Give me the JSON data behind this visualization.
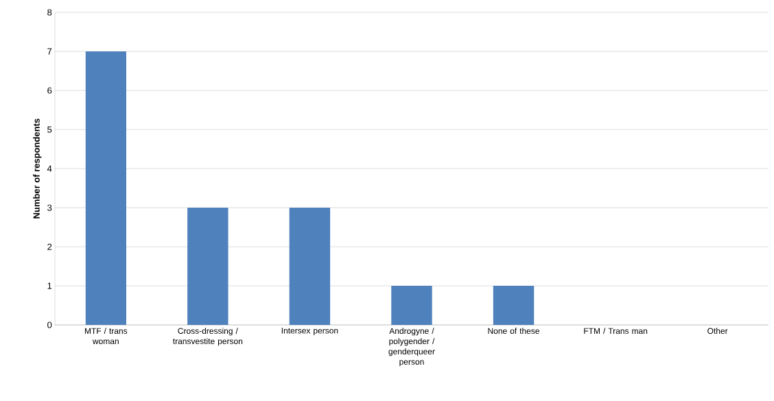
{
  "chart_data": {
    "type": "bar",
    "ylabel": "Number of respondents",
    "categories": [
      "MTF / trans woman",
      "Cross-dressing / transvestite person",
      "Intersex person",
      "Androgyne / polygender / genderqueer person",
      "None of these",
      "FTM / Trans man",
      "Other"
    ],
    "values": [
      7,
      3,
      3,
      1,
      1,
      0,
      0
    ],
    "color": "#4f81bd",
    "ylim": [
      0,
      8
    ],
    "yticks": [
      0,
      1,
      2,
      3,
      4,
      5,
      6,
      7,
      8
    ],
    "grid": "y"
  }
}
